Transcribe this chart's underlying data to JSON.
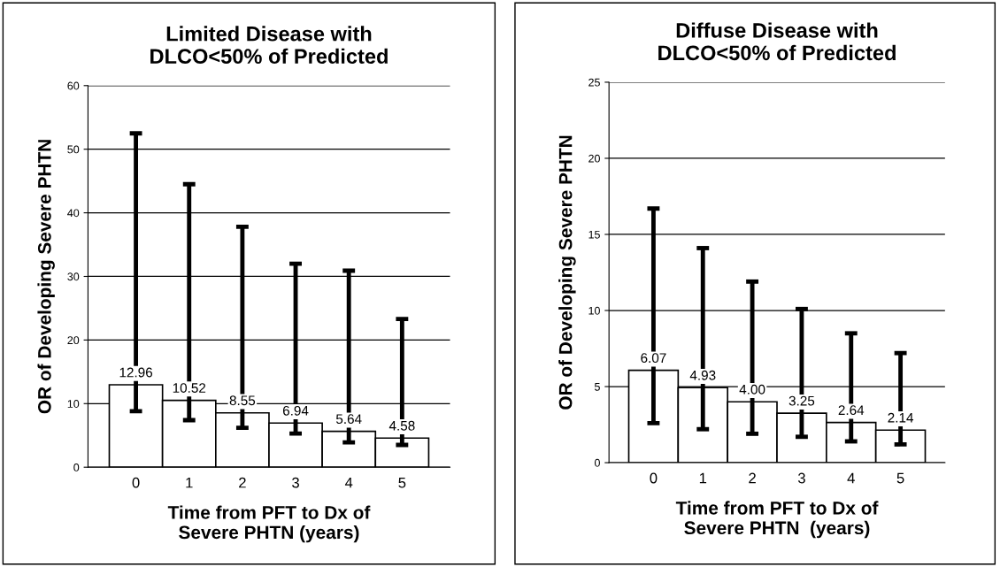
{
  "chart_data": [
    {
      "type": "bar",
      "title": "Limited Disease with\nDLCO<50% of Predicted",
      "xlabel": "Time from PFT to Dx of\nSevere PHTN (years)",
      "ylabel": "OR of Developing Severe PHTN",
      "categories": [
        "0",
        "1",
        "2",
        "3",
        "4",
        "5"
      ],
      "values": [
        12.96,
        10.52,
        8.55,
        6.94,
        5.64,
        4.58
      ],
      "color": "#ffffff",
      "errors": [
        [
          8.8,
          52.5
        ],
        [
          7.4,
          44.5
        ],
        [
          6.2,
          37.8
        ],
        [
          5.3,
          32.0
        ],
        [
          3.9,
          30.9
        ],
        [
          3.5,
          23.3
        ]
      ],
      "data_labels": true,
      "value_labels": [
        "12.96",
        "10.52",
        "8.55",
        "6.94",
        "5.64",
        "4.58"
      ],
      "ylim": [
        0,
        60
      ],
      "yticks": [
        0,
        10,
        20,
        30,
        40,
        50,
        60
      ],
      "grid": "y",
      "legend": false
    },
    {
      "type": "bar",
      "title": "Diffuse Disease with\nDLCO<50% of Predicted",
      "xlabel": "Time from PFT to Dx of\nSevere PHTN  (years)",
      "ylabel": "OR of Developing Severe PHTN",
      "categories": [
        "0",
        "1",
        "2",
        "3",
        "4",
        "5"
      ],
      "values": [
        6.07,
        4.93,
        4.0,
        3.25,
        2.64,
        2.14
      ],
      "color": "#ffffff",
      "errors": [
        [
          2.6,
          16.7
        ],
        [
          2.2,
          14.1
        ],
        [
          1.9,
          11.9
        ],
        [
          1.7,
          10.1
        ],
        [
          1.4,
          8.5
        ],
        [
          1.2,
          7.2
        ]
      ],
      "data_labels": true,
      "value_labels": [
        "6.07",
        "4.93",
        "4.00",
        "3.25",
        "2.64",
        "2.14"
      ],
      "ylim": [
        0,
        25
      ],
      "yticks": [
        0,
        5,
        10,
        15,
        20,
        25
      ],
      "grid": "y",
      "legend": false
    }
  ]
}
